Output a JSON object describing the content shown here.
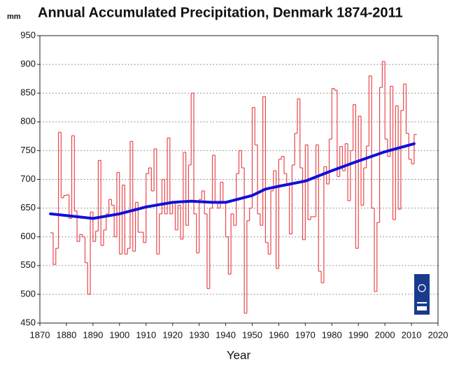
{
  "chart_data": {
    "type": "line",
    "title": "Annual Accumulated Precipitation, Denmark 1874-2011",
    "y_unit": "mm",
    "x_label": "Year",
    "xlim": [
      1870,
      2020
    ],
    "xticks": [
      1870,
      1880,
      1890,
      1900,
      1910,
      1920,
      1930,
      1940,
      1950,
      1960,
      1970,
      1980,
      1990,
      2000,
      2010,
      2020
    ],
    "ylim": [
      450,
      950
    ],
    "yticks": [
      450,
      500,
      550,
      600,
      650,
      700,
      750,
      800,
      850,
      900,
      950
    ],
    "grid": true,
    "series": [
      {
        "style": "step",
        "color": "#e8474c",
        "x": [
          1874,
          1875,
          1876,
          1877,
          1878,
          1879,
          1880,
          1881,
          1882,
          1883,
          1884,
          1885,
          1886,
          1887,
          1888,
          1889,
          1890,
          1891,
          1892,
          1893,
          1894,
          1895,
          1896,
          1897,
          1898,
          1899,
          1900,
          1901,
          1902,
          1903,
          1904,
          1905,
          1906,
          1907,
          1908,
          1909,
          1910,
          1911,
          1912,
          1913,
          1914,
          1915,
          1916,
          1917,
          1918,
          1919,
          1920,
          1921,
          1922,
          1923,
          1924,
          1925,
          1926,
          1927,
          1928,
          1929,
          1930,
          1931,
          1932,
          1933,
          1934,
          1935,
          1936,
          1937,
          1938,
          1939,
          1940,
          1941,
          1942,
          1943,
          1944,
          1945,
          1946,
          1947,
          1948,
          1949,
          1950,
          1951,
          1952,
          1953,
          1954,
          1955,
          1956,
          1957,
          1958,
          1959,
          1960,
          1961,
          1962,
          1963,
          1964,
          1965,
          1966,
          1967,
          1968,
          1969,
          1970,
          1971,
          1972,
          1973,
          1974,
          1975,
          1976,
          1977,
          1978,
          1979,
          1980,
          1981,
          1982,
          1983,
          1984,
          1985,
          1986,
          1987,
          1988,
          1989,
          1990,
          1991,
          1992,
          1993,
          1994,
          1995,
          1996,
          1997,
          1998,
          1999,
          2000,
          2001,
          2002,
          2003,
          2004,
          2005,
          2006,
          2007,
          2008,
          2009,
          2010,
          2011
        ],
        "values": [
          607,
          552,
          580,
          782,
          668,
          672,
          673,
          632,
          776,
          645,
          592,
          604,
          600,
          555,
          500,
          643,
          592,
          610,
          733,
          585,
          612,
          640,
          665,
          655,
          600,
          712,
          570,
          690,
          570,
          580,
          766,
          575,
          660,
          608,
          608,
          590,
          710,
          720,
          680,
          753,
          570,
          640,
          700,
          640,
          772,
          640,
          660,
          612,
          655,
          596,
          747,
          620,
          725,
          850,
          640,
          572,
          665,
          680,
          640,
          510,
          650,
          742,
          660,
          650,
          695,
          660,
          600,
          535,
          640,
          620,
          710,
          750,
          720,
          467,
          628,
          650,
          825,
          760,
          640,
          620,
          844,
          590,
          570,
          680,
          715,
          545,
          735,
          740,
          710,
          690,
          605,
          725,
          780,
          840,
          720,
          595,
          760,
          630,
          635,
          635,
          760,
          540,
          520,
          722,
          692,
          770,
          858,
          855,
          705,
          757,
          715,
          762,
          663,
          750,
          830,
          580,
          810,
          655,
          720,
          758,
          880,
          650,
          505,
          625,
          860,
          905,
          770,
          740,
          862,
          630,
          828,
          648,
          820,
          866,
          780,
          735,
          727,
          778
        ]
      },
      {
        "style": "smooth",
        "color": "#1010d8",
        "x": [
          1874,
          1880,
          1890,
          1900,
          1910,
          1920,
          1927,
          1935,
          1940,
          1950,
          1955,
          1960,
          1970,
          1980,
          1990,
          2000,
          2011
        ],
        "values": [
          640,
          637,
          632,
          640,
          652,
          660,
          662,
          660,
          660,
          672,
          683,
          688,
          697,
          715,
          732,
          748,
          762
        ]
      }
    ]
  }
}
